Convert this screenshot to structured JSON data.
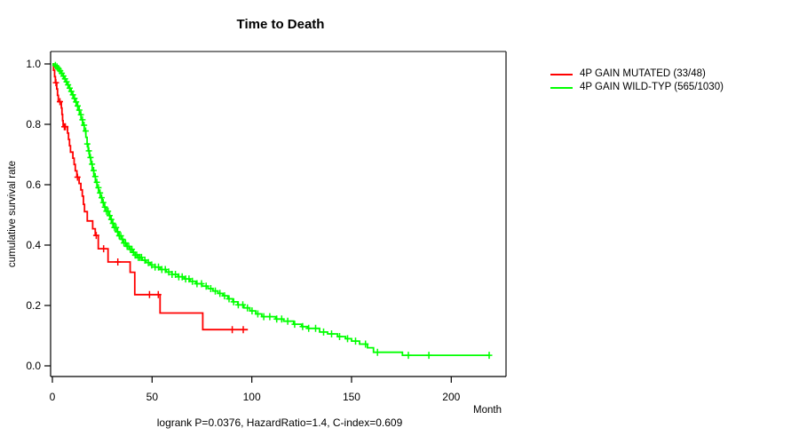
{
  "title": "Time to Death",
  "y_axis_label": "cumulative survival rate",
  "x_axis_label": "Month",
  "footer_stats": "logrank P=0.0376, HazardRatio=1.4, C-index=0.609",
  "legend": {
    "items": [
      {
        "label": "4P GAIN MUTATED (33/48)",
        "color": "#FF0000"
      },
      {
        "label": "4P GAIN WILD-TYP (565/1030)",
        "color": "#00FF00"
      }
    ]
  },
  "chart_data": {
    "type": "line",
    "subtype": "kaplan_meier_step",
    "title": "Time to Death",
    "xlabel": "Month",
    "ylabel": "cumulative survival rate",
    "x_ticks": [
      0,
      50,
      100,
      150,
      200
    ],
    "y_ticks": [
      0.0,
      0.2,
      0.4,
      0.6,
      0.8,
      1.0
    ],
    "xlim": [
      0,
      227
    ],
    "ylim": [
      0,
      1.04
    ],
    "grid": false,
    "legend_position": "right-outside",
    "annotation": "logrank P=0.0376, HazardRatio=1.4, C-index=0.609",
    "box_colors": {
      "top": "#808080",
      "right": "#404040",
      "left": "#000000",
      "bottom": "#000000"
    },
    "series": [
      {
        "name": "4P GAIN MUTATED (33/48)",
        "color": "#FF0000",
        "n_events": 33,
        "n_total": 48,
        "end_time": 98,
        "steps": [
          [
            0,
            1.0
          ],
          [
            0.6,
            0.979
          ],
          [
            1.1,
            0.958
          ],
          [
            1.5,
            0.938
          ],
          [
            2.2,
            0.917
          ],
          [
            2.6,
            0.896
          ],
          [
            3.0,
            0.875
          ],
          [
            4.5,
            0.854
          ],
          [
            4.8,
            0.833
          ],
          [
            5.1,
            0.812
          ],
          [
            5.4,
            0.792
          ],
          [
            7.6,
            0.771
          ],
          [
            8.1,
            0.75
          ],
          [
            8.6,
            0.729
          ],
          [
            9.1,
            0.708
          ],
          [
            10.3,
            0.688
          ],
          [
            10.9,
            0.667
          ],
          [
            11.5,
            0.646
          ],
          [
            12.3,
            0.625
          ],
          [
            13.4,
            0.604
          ],
          [
            14.3,
            0.583
          ],
          [
            15.0,
            0.562
          ],
          [
            15.6,
            0.535
          ],
          [
            16.1,
            0.511
          ],
          [
            17.5,
            0.48
          ],
          [
            20.2,
            0.454
          ],
          [
            21.5,
            0.432
          ],
          [
            23.0,
            0.388
          ],
          [
            27.9,
            0.344
          ],
          [
            39.0,
            0.31
          ],
          [
            41.3,
            0.236
          ],
          [
            54.0,
            0.175
          ],
          [
            75.4,
            0.12
          ]
        ],
        "censor_times": [
          1.8,
          3.8,
          6.0,
          6.5,
          12.6,
          22.0,
          25.7,
          32.8,
          48.7,
          53.1,
          90.2,
          95.7
        ]
      },
      {
        "name": "4P GAIN WILD-TYP (565/1030)",
        "color": "#00FF00",
        "n_events": 565,
        "n_total": 1030,
        "end_time": 219,
        "steps": [
          [
            0,
            1.0
          ],
          [
            0.8,
            0.995
          ],
          [
            1.6,
            0.99
          ],
          [
            2.4,
            0.984
          ],
          [
            3.2,
            0.977
          ],
          [
            4.0,
            0.969
          ],
          [
            4.8,
            0.96
          ],
          [
            5.6,
            0.951
          ],
          [
            6.4,
            0.941
          ],
          [
            7.2,
            0.931
          ],
          [
            8.0,
            0.92
          ],
          [
            8.8,
            0.909
          ],
          [
            9.6,
            0.898
          ],
          [
            10.4,
            0.886
          ],
          [
            11.2,
            0.874
          ],
          [
            12.0,
            0.861
          ],
          [
            12.8,
            0.847
          ],
          [
            13.6,
            0.832
          ],
          [
            14.4,
            0.815
          ],
          [
            15.2,
            0.797
          ],
          [
            16.0,
            0.778
          ],
          [
            16.8,
            0.757
          ],
          [
            17.4,
            0.735
          ],
          [
            18.0,
            0.712
          ],
          [
            18.6,
            0.69
          ],
          [
            19.3,
            0.668
          ],
          [
            20.0,
            0.647
          ],
          [
            20.8,
            0.627
          ],
          [
            21.6,
            0.608
          ],
          [
            22.4,
            0.59
          ],
          [
            23.2,
            0.573
          ],
          [
            24.0,
            0.557
          ],
          [
            25.0,
            0.541
          ],
          [
            26.0,
            0.526
          ],
          [
            27.0,
            0.512
          ],
          [
            28.0,
            0.498
          ],
          [
            29.0,
            0.485
          ],
          [
            30.0,
            0.472
          ],
          [
            31.0,
            0.458
          ],
          [
            32.0,
            0.444
          ],
          [
            33.2,
            0.431
          ],
          [
            34.4,
            0.419
          ],
          [
            35.6,
            0.407
          ],
          [
            37.0,
            0.396
          ],
          [
            38.5,
            0.386
          ],
          [
            40.0,
            0.376
          ],
          [
            41.5,
            0.367
          ],
          [
            43.0,
            0.359
          ],
          [
            45.0,
            0.35
          ],
          [
            47.0,
            0.342
          ],
          [
            49.0,
            0.334
          ],
          [
            51.5,
            0.327
          ],
          [
            54.0,
            0.319
          ],
          [
            57.0,
            0.311
          ],
          [
            60.0,
            0.303
          ],
          [
            63.0,
            0.295
          ],
          [
            66.0,
            0.288
          ],
          [
            69.0,
            0.28
          ],
          [
            72.0,
            0.272
          ],
          [
            75.0,
            0.264
          ],
          [
            78.0,
            0.256
          ],
          [
            80.5,
            0.248
          ],
          [
            83.0,
            0.24
          ],
          [
            85.5,
            0.232
          ],
          [
            88.0,
            0.222
          ],
          [
            90.5,
            0.212
          ],
          [
            93.0,
            0.202
          ],
          [
            96.0,
            0.192
          ],
          [
            99.0,
            0.182
          ],
          [
            102.0,
            0.172
          ],
          [
            105.0,
            0.163
          ],
          [
            112.0,
            0.155
          ],
          [
            116.0,
            0.148
          ],
          [
            121.0,
            0.138
          ],
          [
            125.0,
            0.13
          ],
          [
            128.0,
            0.124
          ],
          [
            134.0,
            0.112
          ],
          [
            138.0,
            0.106
          ],
          [
            143.0,
            0.097
          ],
          [
            147.0,
            0.09
          ],
          [
            150.0,
            0.082
          ],
          [
            154.0,
            0.072
          ],
          [
            158.0,
            0.06
          ],
          [
            161.0,
            0.045
          ],
          [
            175.5,
            0.035
          ]
        ],
        "censor_times": [
          1.5,
          2.3,
          3.1,
          3.9,
          4.7,
          5.5,
          6.3,
          7.1,
          7.9,
          8.7,
          9.5,
          10.3,
          11.1,
          11.9,
          12.7,
          13.5,
          14.3,
          15.1,
          15.9,
          16.7,
          17.5,
          18.3,
          19.1,
          19.9,
          20.7,
          21.5,
          22.3,
          23.1,
          23.9,
          24.7,
          25.5,
          26.3,
          27.1,
          27.9,
          28.7,
          29.5,
          30.3,
          31.1,
          31.9,
          32.7,
          33.5,
          34.3,
          35.1,
          35.9,
          36.7,
          37.5,
          38.3,
          39.1,
          39.9,
          40.7,
          41.5,
          42.3,
          43.1,
          43.9,
          44.7,
          46.4,
          48.1,
          49.8,
          51.5,
          53.2,
          54.9,
          56.6,
          58.3,
          60.0,
          61.7,
          63.4,
          65.1,
          66.8,
          68.5,
          70.2,
          72.5,
          74.8,
          77.1,
          79.4,
          81.7,
          84.0,
          86.3,
          88.6,
          90.9,
          93.2,
          95.5,
          97.8,
          100.1,
          103,
          106,
          109,
          112.5,
          115,
          118,
          121.5,
          125.5,
          128.5,
          132,
          136,
          140,
          144,
          148,
          152,
          157,
          163,
          178.5,
          188.8,
          219
        ]
      }
    ]
  }
}
